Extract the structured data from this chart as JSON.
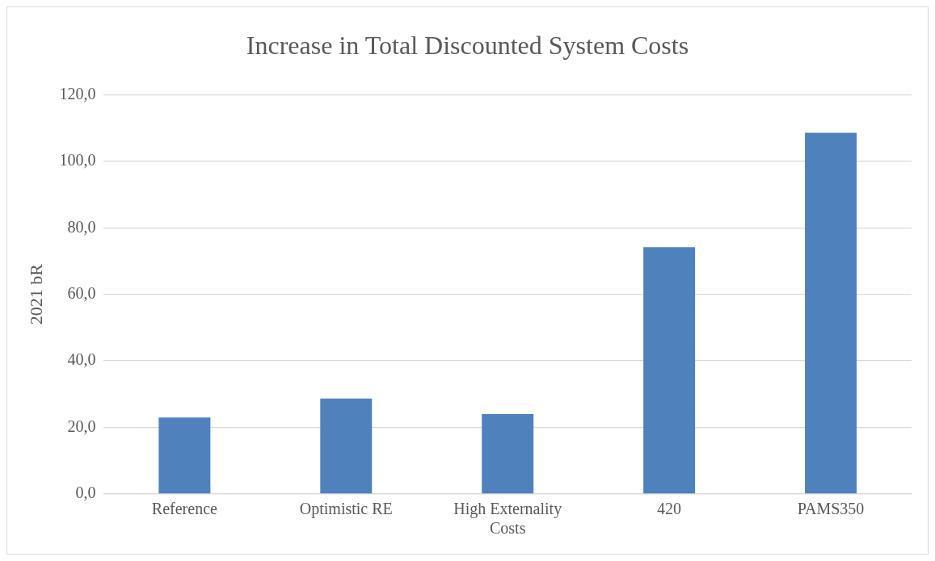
{
  "chart_data": {
    "type": "bar",
    "title": "Increase in Total Discounted System Costs",
    "ylabel": "2021 bR",
    "categories": [
      "Reference",
      "Optimistic RE",
      "High Externality Costs",
      "420",
      "PAMS350"
    ],
    "values": [
      23.0,
      28.7,
      24.0,
      74.2,
      108.6
    ],
    "color": "#4f81bd",
    "ylim": [
      0,
      120
    ],
    "yticks": [
      {
        "value": 0,
        "label": "0,0"
      },
      {
        "value": 20,
        "label": "20,0"
      },
      {
        "value": 40,
        "label": "40,0"
      },
      {
        "value": 60,
        "label": "60,0"
      },
      {
        "value": 80,
        "label": "80,0"
      },
      {
        "value": 100,
        "label": "100,0"
      },
      {
        "value": 120,
        "label": "120,0"
      }
    ],
    "grid": "y",
    "legend": false
  }
}
